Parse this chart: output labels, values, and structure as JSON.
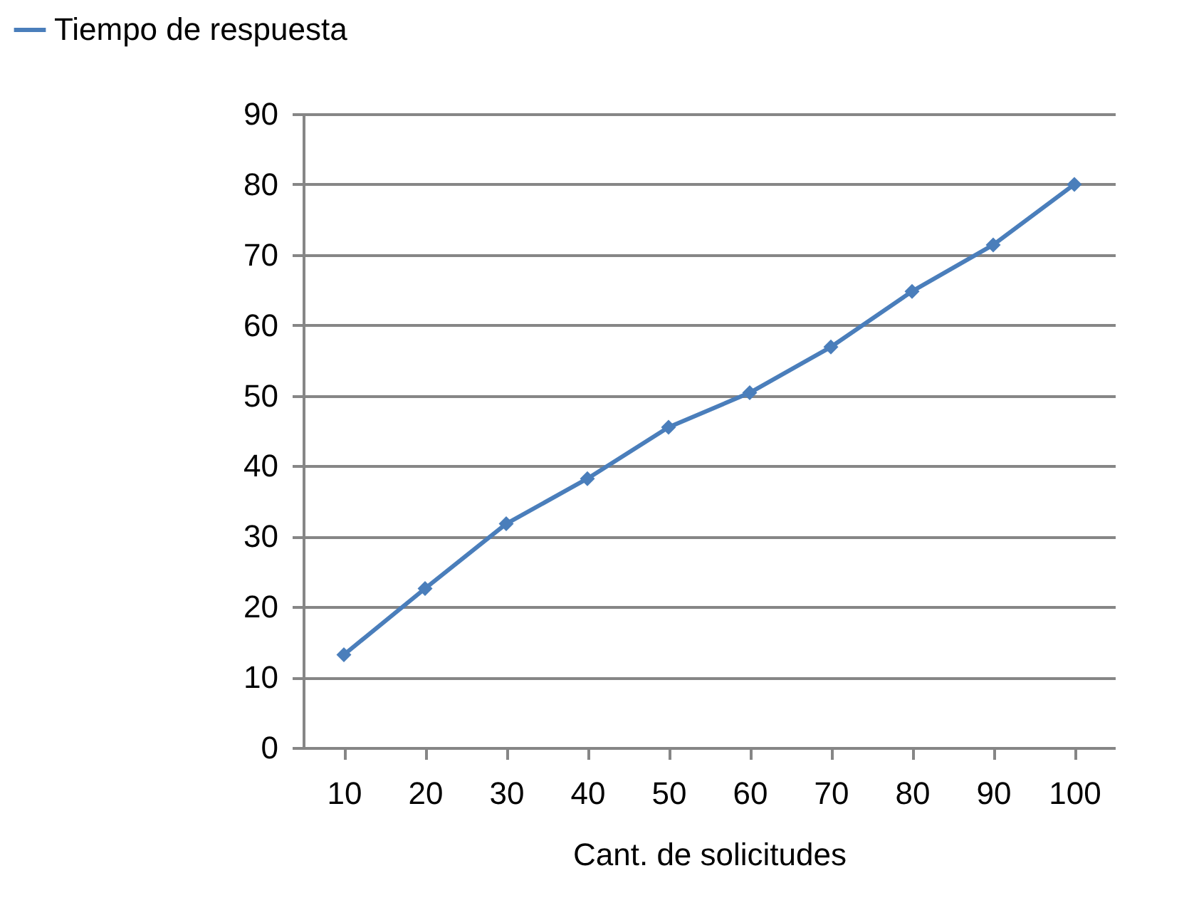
{
  "chart_data": {
    "type": "line",
    "xlabel": "Cant. de solicitudes",
    "categories": [
      "10",
      "20",
      "30",
      "40",
      "50",
      "60",
      "70",
      "80",
      "90",
      "100"
    ],
    "series": [
      {
        "name": "Tiempo de respuesta",
        "color": "#4a7ebb",
        "values": [
          13.2,
          22.6,
          31.8,
          38.2,
          45.5,
          50.4,
          56.9,
          64.8,
          71.4,
          80
        ]
      }
    ],
    "ylim": [
      0,
      90
    ],
    "yticks": [
      0,
      10,
      20,
      30,
      40,
      50,
      60,
      70,
      80,
      90
    ],
    "grid": "y",
    "legend": "top left",
    "marker": "diamond",
    "line_style": "solid"
  }
}
